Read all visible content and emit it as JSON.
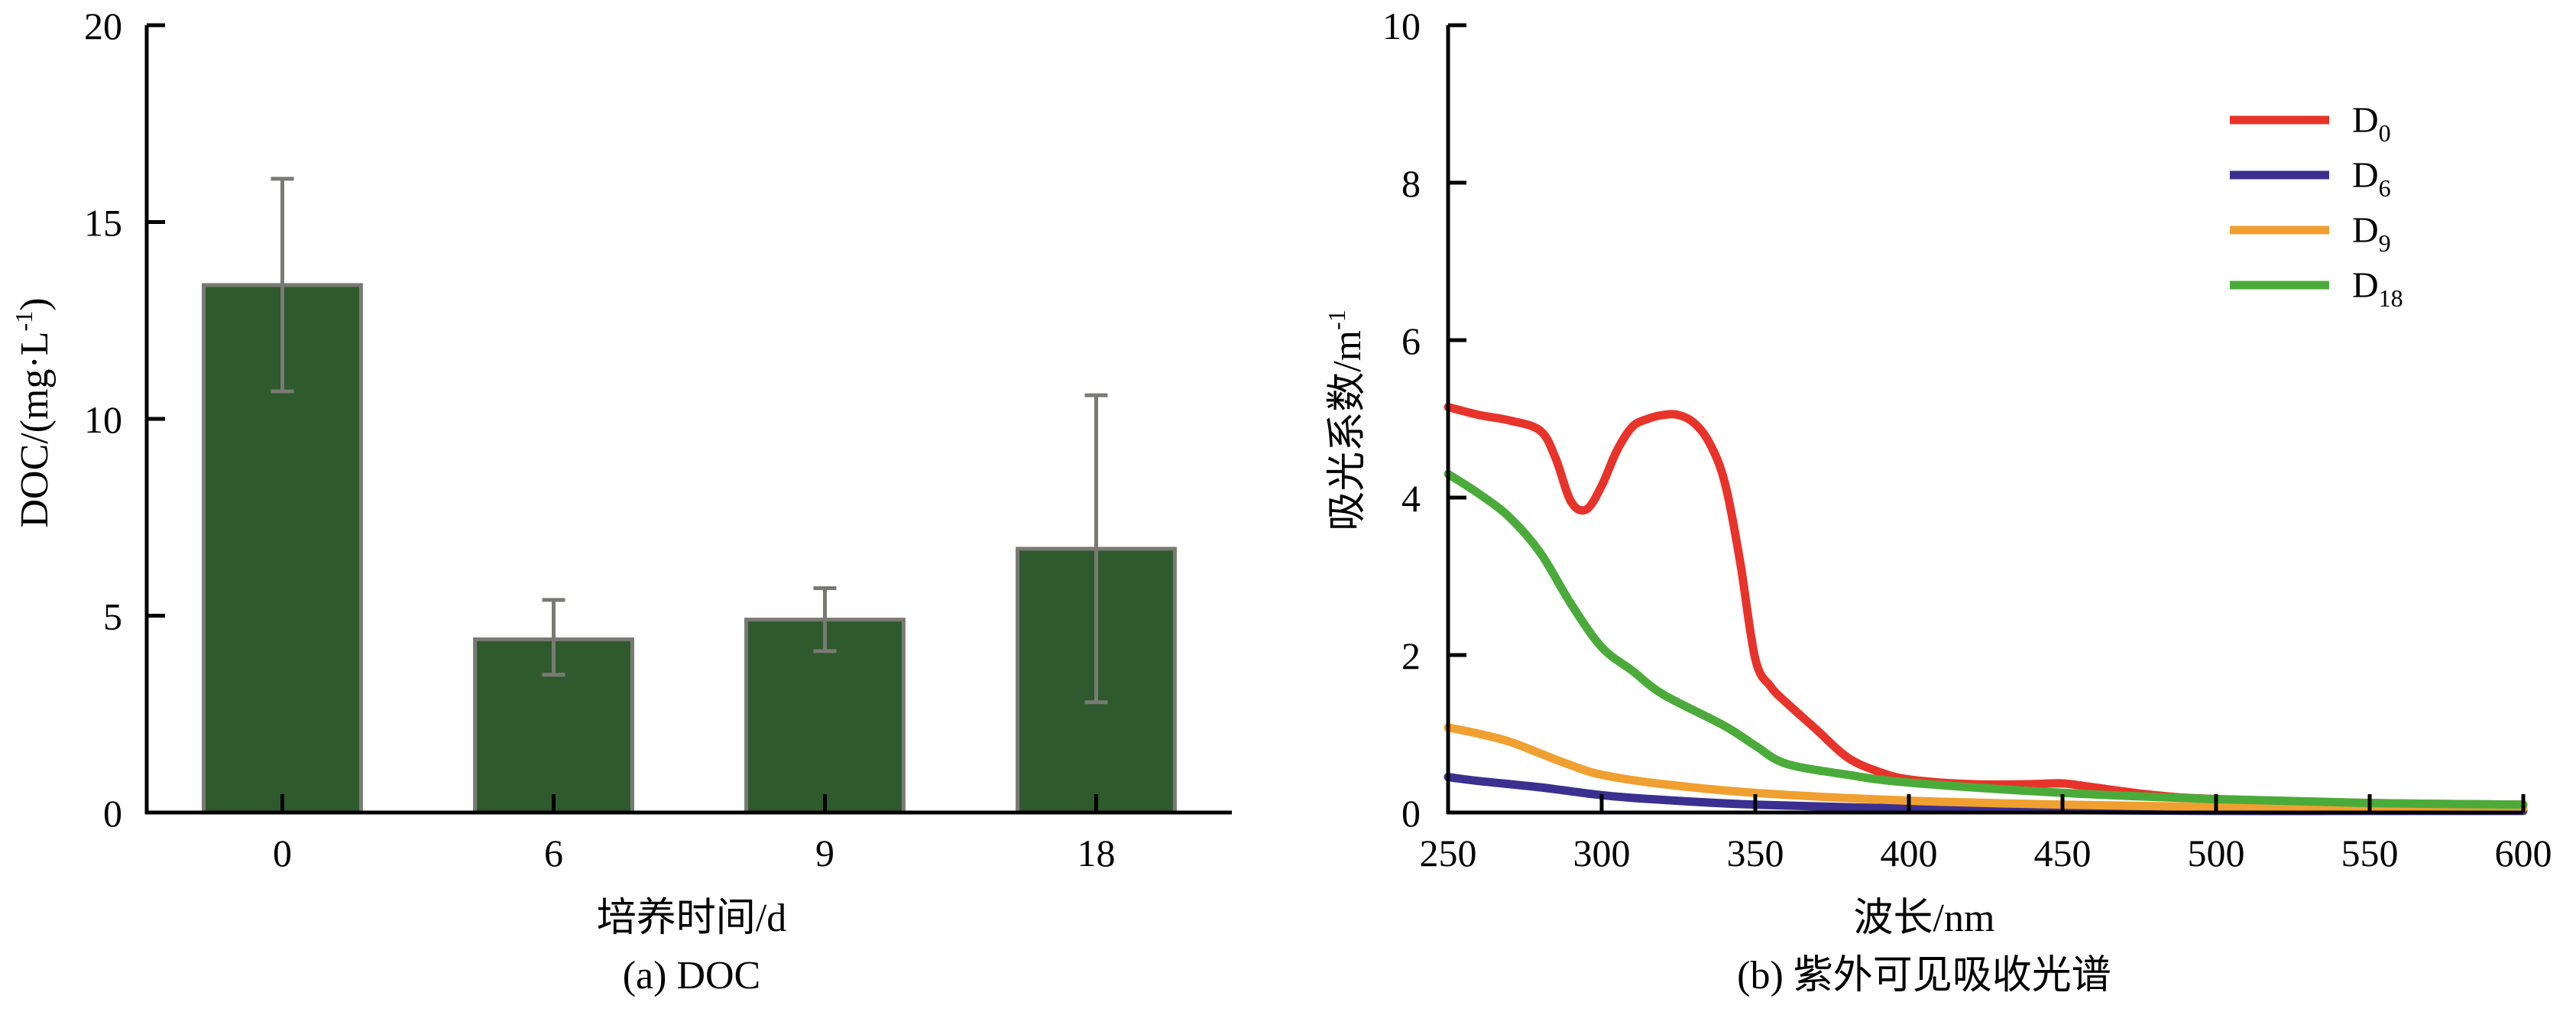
{
  "chart_data": [
    {
      "type": "bar",
      "caption": "(a) DOC",
      "xlabel": "培养时间/d",
      "ylabel": "DOC/(mg·L-1)",
      "ylabel_parts": [
        "DOC/(mg·L",
        "-1",
        ")"
      ],
      "ylim": [
        0,
        20
      ],
      "yticks": [
        0,
        5,
        10,
        15,
        20
      ],
      "categories": [
        "0",
        "6",
        "9",
        "18"
      ],
      "values": [
        13.4,
        4.4,
        4.9,
        6.7
      ],
      "error_low": [
        10.7,
        3.5,
        4.1,
        2.8
      ],
      "error_high": [
        16.1,
        5.4,
        5.7,
        10.6
      ],
      "bar_color": "#2e5a2e",
      "bar_edge": "#7a7a74",
      "error_color": "#7a7a74",
      "grid": false
    },
    {
      "type": "line",
      "caption": "(b) 紫外可见吸收光谱",
      "xlabel": "波长/nm",
      "ylabel": "吸光系数/m-1",
      "ylabel_parts": [
        "吸光系数/m",
        "-1",
        ""
      ],
      "xlim": [
        250,
        600
      ],
      "ylim": [
        0,
        10
      ],
      "xticks": [
        250,
        300,
        350,
        400,
        450,
        500,
        550,
        600
      ],
      "yticks": [
        0,
        2,
        4,
        6,
        8,
        10
      ],
      "legend_position": "top-right",
      "grid": false,
      "series": [
        {
          "name": "D0",
          "label_main": "D",
          "label_sub": "0",
          "color": "#e8332a",
          "x": [
            250,
            260,
            270,
            280,
            285,
            290,
            295,
            300,
            305,
            310,
            315,
            320,
            325,
            330,
            335,
            340,
            345,
            350,
            355,
            360,
            370,
            380,
            390,
            400,
            420,
            440,
            450,
            460,
            480,
            500,
            550,
            600
          ],
          "y": [
            5.15,
            5.05,
            4.98,
            4.85,
            4.5,
            3.95,
            3.85,
            4.15,
            4.6,
            4.9,
            5.0,
            5.05,
            5.05,
            4.95,
            4.7,
            4.2,
            3.2,
            1.95,
            1.6,
            1.4,
            1.05,
            0.7,
            0.52,
            0.42,
            0.36,
            0.36,
            0.37,
            0.32,
            0.22,
            0.17,
            0.12,
            0.1
          ]
        },
        {
          "name": "D6",
          "label_main": "D",
          "label_sub": "6",
          "color": "#3b2f8f",
          "x": [
            250,
            260,
            280,
            300,
            320,
            350,
            400,
            450,
            500,
            550,
            600
          ],
          "y": [
            0.45,
            0.4,
            0.32,
            0.22,
            0.16,
            0.1,
            0.05,
            0.03,
            0.02,
            0.02,
            0.02
          ]
        },
        {
          "name": "D9",
          "label_main": "D",
          "label_sub": "9",
          "color": "#f0a030",
          "x": [
            250,
            260,
            270,
            280,
            290,
            300,
            320,
            350,
            400,
            450,
            500,
            550,
            600
          ],
          "y": [
            1.08,
            1.0,
            0.9,
            0.75,
            0.6,
            0.48,
            0.36,
            0.25,
            0.15,
            0.1,
            0.07,
            0.05,
            0.05
          ]
        },
        {
          "name": "D18",
          "label_main": "D",
          "label_sub": "18",
          "color": "#4bab3a",
          "x": [
            250,
            260,
            270,
            280,
            290,
            300,
            310,
            320,
            340,
            350,
            360,
            380,
            400,
            450,
            500,
            550,
            600
          ],
          "y": [
            4.3,
            4.05,
            3.75,
            3.3,
            2.65,
            2.1,
            1.8,
            1.5,
            1.1,
            0.85,
            0.62,
            0.48,
            0.38,
            0.25,
            0.17,
            0.12,
            0.1
          ]
        }
      ]
    }
  ]
}
